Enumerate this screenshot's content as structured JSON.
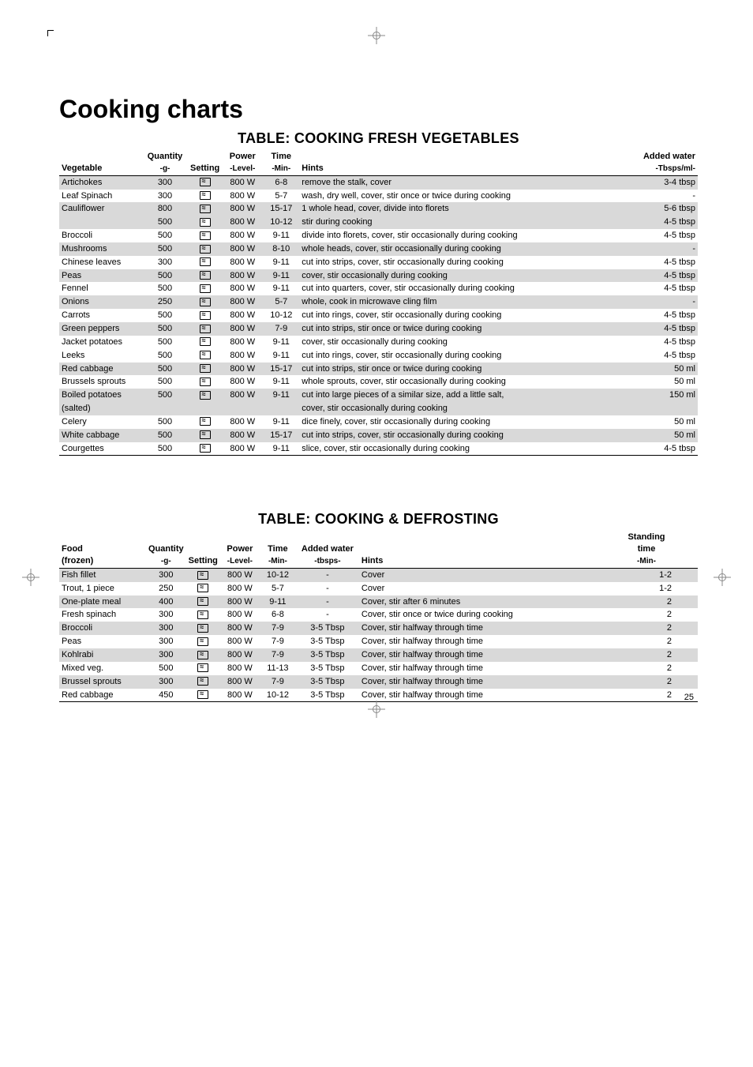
{
  "page": {
    "title": "Cooking charts",
    "number": "25"
  },
  "table1": {
    "title": "TABLE: COOKING FRESH VEGETABLES",
    "headers": {
      "veg": "Vegetable",
      "qty": "Quantity",
      "qty_unit": "-g-",
      "setting": "Setting",
      "power": "Power",
      "power_unit": "-Level-",
      "time": "Time",
      "time_unit": "-Min-",
      "hints": "Hints",
      "water": "Added water",
      "water_unit": "-Tbsps/ml-"
    },
    "rows": [
      {
        "shade": true,
        "veg": "Artichokes",
        "qty": "300",
        "icon_shade": true,
        "power": "800 W",
        "time": "6-8",
        "hint": "remove the stalk, cover",
        "water": "3-4 tbsp"
      },
      {
        "shade": false,
        "veg": "Leaf Spinach",
        "qty": "300",
        "icon_shade": false,
        "power": "800 W",
        "time": "5-7",
        "hint": "wash, dry well, cover, stir once or twice during cooking",
        "water": "-"
      },
      {
        "shade": true,
        "veg": "Cauliflower",
        "qty": "800",
        "icon_shade": true,
        "power": "800 W",
        "time": "15-17",
        "hint": "1 whole head, cover, divide into florets",
        "water": "5-6 tbsp"
      },
      {
        "shade": true,
        "veg": "",
        "qty": "500",
        "icon_shade": false,
        "power": "800 W",
        "time": "10-12",
        "hint": "stir during cooking",
        "water": "4-5 tbsp"
      },
      {
        "shade": false,
        "veg": "Broccoli",
        "qty": "500",
        "icon_shade": false,
        "power": "800 W",
        "time": "9-11",
        "hint": "divide into florets, cover, stir occasionally during cooking",
        "water": "4-5 tbsp"
      },
      {
        "shade": true,
        "veg": "Mushrooms",
        "qty": "500",
        "icon_shade": true,
        "power": "800 W",
        "time": "8-10",
        "hint": "whole heads, cover, stir occasionally during cooking",
        "water": "-"
      },
      {
        "shade": false,
        "veg": "Chinese leaves",
        "qty": "300",
        "icon_shade": false,
        "power": "800 W",
        "time": "9-11",
        "hint": "cut into strips, cover, stir occasionally during cooking",
        "water": "4-5 tbsp"
      },
      {
        "shade": true,
        "veg": "Peas",
        "qty": "500",
        "icon_shade": true,
        "power": "800 W",
        "time": "9-11",
        "hint": "cover, stir occasionally during cooking",
        "water": "4-5 tbsp"
      },
      {
        "shade": false,
        "veg": "Fennel",
        "qty": "500",
        "icon_shade": false,
        "power": "800 W",
        "time": "9-11",
        "hint": "cut into quarters, cover, stir occasionally during cooking",
        "water": "4-5 tbsp"
      },
      {
        "shade": true,
        "veg": "Onions",
        "qty": "250",
        "icon_shade": true,
        "power": "800 W",
        "time": "5-7",
        "hint": "whole, cook in microwave cling film",
        "water": "-"
      },
      {
        "shade": false,
        "veg": "Carrots",
        "qty": "500",
        "icon_shade": false,
        "power": "800 W",
        "time": "10-12",
        "hint": "cut into rings, cover, stir occasionally during cooking",
        "water": "4-5 tbsp"
      },
      {
        "shade": true,
        "veg": "Green peppers",
        "qty": "500",
        "icon_shade": true,
        "power": "800 W",
        "time": "7-9",
        "hint": "cut into strips, stir once or twice during cooking",
        "water": "4-5 tbsp"
      },
      {
        "shade": false,
        "veg": "Jacket potatoes",
        "qty": "500",
        "icon_shade": false,
        "power": "800 W",
        "time": "9-11",
        "hint": "cover, stir occasionally during cooking",
        "water": "4-5 tbsp"
      },
      {
        "shade": false,
        "veg": "Leeks",
        "qty": "500",
        "icon_shade": false,
        "power": "800 W",
        "time": "9-11",
        "hint": "cut into rings, cover, stir occasionally during cooking",
        "water": "4-5 tbsp"
      },
      {
        "shade": true,
        "veg": "Red cabbage",
        "qty": "500",
        "icon_shade": true,
        "power": "800 W",
        "time": "15-17",
        "hint": "cut into strips, stir once or twice during cooking",
        "water": "50 ml"
      },
      {
        "shade": false,
        "veg": "Brussels sprouts",
        "qty": "500",
        "icon_shade": false,
        "power": "800 W",
        "time": "9-11",
        "hint": "whole sprouts, cover, stir occasionally during cooking",
        "water": "50 ml"
      },
      {
        "shade": true,
        "veg": "Boiled potatoes",
        "qty": "500",
        "icon_shade": true,
        "power": "800 W",
        "time": "9-11",
        "hint": "cut into large pieces of a similar size, add a little salt,",
        "water": "150 ml"
      },
      {
        "shade": true,
        "veg": "(salted)",
        "qty": "",
        "icon_shade": null,
        "power": "",
        "time": "",
        "hint": "cover, stir occasionally during cooking",
        "water": ""
      },
      {
        "shade": false,
        "veg": "Celery",
        "qty": "500",
        "icon_shade": false,
        "power": "800 W",
        "time": "9-11",
        "hint": "dice finely, cover, stir occasionally during cooking",
        "water": "50 ml"
      },
      {
        "shade": true,
        "veg": "White cabbage",
        "qty": "500",
        "icon_shade": true,
        "power": "800 W",
        "time": "15-17",
        "hint": "cut into strips, cover, stir occasionally during cooking",
        "water": "50 ml"
      },
      {
        "shade": false,
        "veg": "Courgettes",
        "qty": "500",
        "icon_shade": false,
        "power": "800 W",
        "time": "9-11",
        "hint": "slice, cover, stir occasionally during cooking",
        "water": "4-5 tbsp"
      }
    ]
  },
  "table2": {
    "title": "TABLE: COOKING & DEFROSTING",
    "headers": {
      "food": "Food",
      "frozen": "(frozen)",
      "qty": "Quantity",
      "qty_unit": "-g-",
      "setting": "Setting",
      "power": "Power",
      "power_unit": "-Level-",
      "time": "Time",
      "time_unit": "-Min-",
      "water": "Added water",
      "water_unit": "-tbsps-",
      "hints": "Hints",
      "stand": "Standing time",
      "stand_unit": "-Min-"
    },
    "rows": [
      {
        "shade": true,
        "food": "Fish fillet",
        "qty": "300",
        "icon_shade": true,
        "power": "800 W",
        "time": "10-12",
        "water": "-",
        "hint": "Cover",
        "stand": "1-2"
      },
      {
        "shade": false,
        "food": "Trout, 1 piece",
        "qty": "250",
        "icon_shade": false,
        "power": "800 W",
        "time": "5-7",
        "water": "-",
        "hint": "Cover",
        "stand": "1-2"
      },
      {
        "shade": true,
        "food": "One-plate meal",
        "qty": "400",
        "icon_shade": true,
        "power": "800 W",
        "time": "9-11",
        "water": "-",
        "hint": "Cover, stir after 6 minutes",
        "stand": "2"
      },
      {
        "shade": false,
        "food": "Fresh spinach",
        "qty": "300",
        "icon_shade": false,
        "power": "800 W",
        "time": "6-8",
        "water": "-",
        "hint": "Cover, stir once or twice during cooking",
        "stand": "2"
      },
      {
        "shade": true,
        "food": "Broccoli",
        "qty": "300",
        "icon_shade": true,
        "power": "800 W",
        "time": "7-9",
        "water": "3-5 Tbsp",
        "hint": "Cover, stir halfway through time",
        "stand": "2"
      },
      {
        "shade": false,
        "food": "Peas",
        "qty": "300",
        "icon_shade": false,
        "power": "800 W",
        "time": "7-9",
        "water": "3-5 Tbsp",
        "hint": "Cover, stir halfway through time",
        "stand": "2"
      },
      {
        "shade": true,
        "food": "Kohlrabi",
        "qty": "300",
        "icon_shade": true,
        "power": "800 W",
        "time": "7-9",
        "water": "3-5 Tbsp",
        "hint": "Cover, stir halfway through time",
        "stand": "2"
      },
      {
        "shade": false,
        "food": "Mixed veg.",
        "qty": "500",
        "icon_shade": false,
        "power": "800 W",
        "time": "11-13",
        "water": "3-5 Tbsp",
        "hint": "Cover, stir halfway through time",
        "stand": "2"
      },
      {
        "shade": true,
        "food": "Brussel sprouts",
        "qty": "300",
        "icon_shade": true,
        "power": "800 W",
        "time": "7-9",
        "water": "3-5 Tbsp",
        "hint": "Cover, stir halfway through time",
        "stand": "2"
      },
      {
        "shade": false,
        "food": "Red cabbage",
        "qty": "450",
        "icon_shade": false,
        "power": "800 W",
        "time": "10-12",
        "water": "3-5 Tbsp",
        "hint": "Cover, stir halfway through time",
        "stand": "2"
      }
    ]
  }
}
